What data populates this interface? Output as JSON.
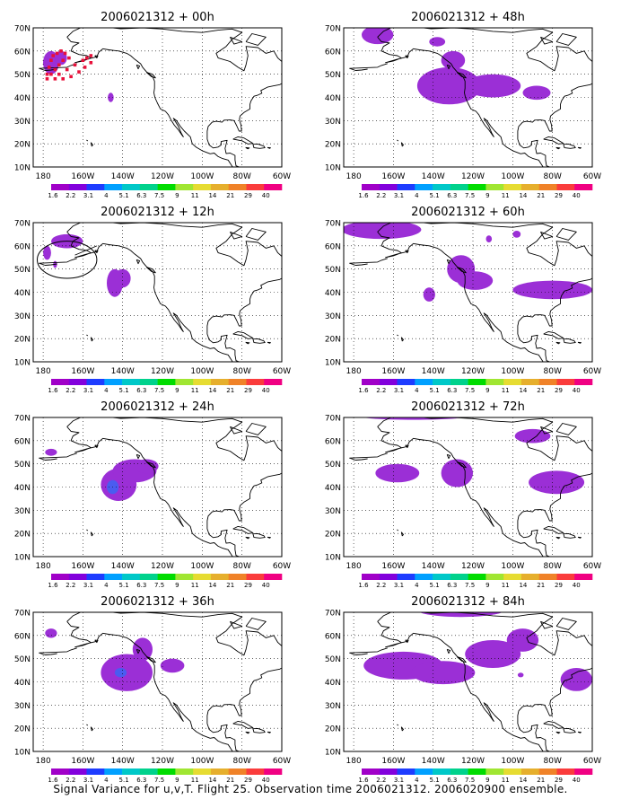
{
  "caption": "Signal Variance for u,v,T. Flight 25. Observation time 2006021312. 2006020900 ensemble.",
  "lat_labels": [
    "70N",
    "60N",
    "50N",
    "40N",
    "30N",
    "20N",
    "10N"
  ],
  "lon_labels": [
    "180",
    "160W",
    "140W",
    "120W",
    "100W",
    "80W",
    "60W"
  ],
  "colorbar": {
    "labels": [
      "1.6",
      "2.2",
      "3.1",
      "4",
      "5.1",
      "6.3",
      "7.5",
      "9",
      "11",
      "14",
      "21",
      "29",
      "40"
    ],
    "colors": [
      "#a000c8",
      "#8200dc",
      "#1e3cff",
      "#00a0ff",
      "#00c8c8",
      "#00d28c",
      "#00dc00",
      "#a0e632",
      "#e6dc32",
      "#e6af2d",
      "#f08228",
      "#fa3c3c",
      "#f00082"
    ]
  },
  "colors": {
    "purple": "#9b2fd6",
    "blue": "#4a5cf0",
    "obs_red": "#e8103a"
  },
  "panels": [
    {
      "title": "2006021312 + 00h",
      "blobs": [
        {
          "lon": -176,
          "lat": 55,
          "rx": 4,
          "ry": 5
        },
        {
          "lon": -171,
          "lat": 57,
          "rx": 3,
          "ry": 3
        },
        {
          "lon": -146,
          "lat": 40,
          "rx": 1.5,
          "ry": 2
        }
      ],
      "obs": [
        [
          -178,
          50
        ],
        [
          -177,
          53
        ],
        [
          -176,
          56
        ],
        [
          -175,
          58
        ],
        [
          -173,
          59
        ],
        [
          -171,
          60
        ],
        [
          -169,
          59
        ],
        [
          -167,
          57
        ],
        [
          -170,
          56
        ],
        [
          -172,
          54
        ],
        [
          -174,
          52
        ],
        [
          -176,
          50
        ],
        [
          -178,
          48
        ],
        [
          -172,
          50
        ],
        [
          -168,
          52
        ],
        [
          -164,
          54
        ],
        [
          -160,
          56
        ],
        [
          -158,
          57
        ],
        [
          -156,
          58
        ],
        [
          -170,
          48
        ],
        [
          -166,
          49
        ],
        [
          -162,
          51
        ],
        [
          -159,
          53
        ],
        [
          -156,
          55
        ],
        [
          -174,
          48
        ]
      ]
    },
    {
      "title": "2006021312 + 12h",
      "blobs": [
        {
          "lon": -168,
          "lat": 62,
          "rx": 8,
          "ry": 3
        },
        {
          "lon": -178,
          "lat": 57,
          "rx": 2,
          "ry": 3
        },
        {
          "lon": -174,
          "lat": 52,
          "rx": 1,
          "ry": 1.5
        },
        {
          "lon": -144,
          "lat": 44,
          "rx": 4,
          "ry": 6
        },
        {
          "lon": -140,
          "lat": 46,
          "rx": 4,
          "ry": 4
        }
      ],
      "obs": [],
      "circle": {
        "lon": -168,
        "lat": 54,
        "rx": 15,
        "ry": 8
      }
    },
    {
      "title": "2006021312 + 24h",
      "blobs": [
        {
          "lon": -176,
          "lat": 55,
          "rx": 3,
          "ry": 1.5
        },
        {
          "lon": -142,
          "lat": 41,
          "rx": 9,
          "ry": 7
        },
        {
          "lon": -134,
          "lat": 47,
          "rx": 11,
          "ry": 5
        },
        {
          "lon": -128,
          "lat": 49,
          "rx": 6,
          "ry": 3
        }
      ],
      "cores": [
        {
          "lon": -145,
          "lat": 40,
          "rx": 3,
          "ry": 3
        }
      ]
    },
    {
      "title": "2006021312 + 36h",
      "blobs": [
        {
          "lon": -176,
          "lat": 61,
          "rx": 3,
          "ry": 2
        },
        {
          "lon": -138,
          "lat": 44,
          "rx": 13,
          "ry": 8
        },
        {
          "lon": -130,
          "lat": 54,
          "rx": 5,
          "ry": 5
        },
        {
          "lon": -115,
          "lat": 47,
          "rx": 6,
          "ry": 3
        }
      ],
      "cores": [
        {
          "lon": -141,
          "lat": 44,
          "rx": 3,
          "ry": 2
        }
      ]
    },
    {
      "title": "2006021312 + 48h",
      "blobs": [
        {
          "lon": -168,
          "lat": 67,
          "rx": 8,
          "ry": 4
        },
        {
          "lon": -138,
          "lat": 64,
          "rx": 4,
          "ry": 2
        },
        {
          "lon": -132,
          "lat": 45,
          "rx": 16,
          "ry": 8
        },
        {
          "lon": -110,
          "lat": 45,
          "rx": 14,
          "ry": 5
        },
        {
          "lon": -88,
          "lat": 42,
          "rx": 7,
          "ry": 3
        },
        {
          "lon": -130,
          "lat": 56,
          "rx": 6,
          "ry": 4
        }
      ],
      "cores": []
    },
    {
      "title": "2006021312 + 60h",
      "blobs": [
        {
          "lon": -166,
          "lat": 67,
          "rx": 20,
          "ry": 4
        },
        {
          "lon": -130,
          "lat": 72,
          "rx": 10,
          "ry": 2
        },
        {
          "lon": -126,
          "lat": 50,
          "rx": 7,
          "ry": 6
        },
        {
          "lon": -119,
          "lat": 45,
          "rx": 9,
          "ry": 4
        },
        {
          "lon": -142,
          "lat": 39,
          "rx": 3,
          "ry": 3
        },
        {
          "lon": -98,
          "lat": 65,
          "rx": 2,
          "ry": 1.5
        },
        {
          "lon": -112,
          "lat": 63,
          "rx": 1.5,
          "ry": 1.5
        },
        {
          "lon": -80,
          "lat": 41,
          "rx": 20,
          "ry": 4
        }
      ],
      "cores": []
    },
    {
      "title": "2006021312 + 72h",
      "blobs": [
        {
          "lon": -150,
          "lat": 71,
          "rx": 30,
          "ry": 2
        },
        {
          "lon": -90,
          "lat": 62,
          "rx": 9,
          "ry": 3
        },
        {
          "lon": -158,
          "lat": 46,
          "rx": 11,
          "ry": 4
        },
        {
          "lon": -128,
          "lat": 46,
          "rx": 8,
          "ry": 6
        },
        {
          "lon": -78,
          "lat": 42,
          "rx": 14,
          "ry": 5
        }
      ],
      "cores": []
    },
    {
      "title": "2006021312 + 84h",
      "blobs": [
        {
          "lon": -126,
          "lat": 71,
          "rx": 22,
          "ry": 3
        },
        {
          "lon": -155,
          "lat": 47,
          "rx": 20,
          "ry": 6
        },
        {
          "lon": -135,
          "lat": 44,
          "rx": 16,
          "ry": 5
        },
        {
          "lon": -110,
          "lat": 52,
          "rx": 14,
          "ry": 6
        },
        {
          "lon": -95,
          "lat": 58,
          "rx": 8,
          "ry": 5
        },
        {
          "lon": -68,
          "lat": 41,
          "rx": 8,
          "ry": 5
        },
        {
          "lon": -96,
          "lat": 43,
          "rx": 1.5,
          "ry": 1
        }
      ],
      "cores": []
    }
  ]
}
